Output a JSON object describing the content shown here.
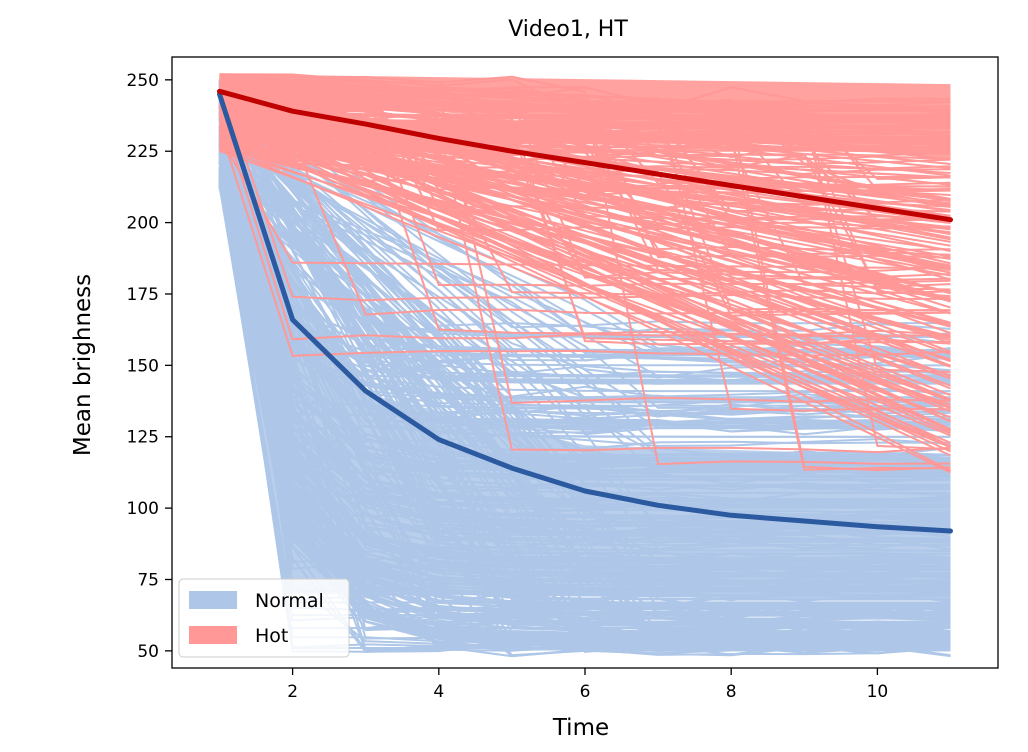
{
  "chart_data": {
    "type": "line",
    "title": "Video1, HT",
    "xlabel": "Time",
    "ylabel": "Mean brighness",
    "xlim": [
      0.35,
      11.65
    ],
    "ylim": [
      44,
      258
    ],
    "xticks": [
      2,
      4,
      6,
      8,
      10
    ],
    "yticks": [
      50,
      75,
      100,
      125,
      150,
      175,
      200,
      225,
      250
    ],
    "x": [
      1,
      2,
      3,
      4,
      5,
      6,
      7,
      8,
      9,
      10,
      11
    ],
    "grid": false,
    "legend_position": "lower-left",
    "legend": [
      {
        "label": "Normal",
        "color": "#aec7e8"
      },
      {
        "label": "Hot",
        "color": "#ff9896"
      }
    ],
    "series": [
      {
        "name": "Normal",
        "role": "mean",
        "color": "#2c5aa0",
        "values": [
          245,
          166,
          141,
          124,
          114,
          106,
          101,
          97.5,
          95.5,
          93.5,
          92
        ]
      },
      {
        "name": "Hot",
        "role": "mean",
        "color": "#c00000",
        "values": [
          246,
          239,
          234.5,
          229.5,
          225,
          221,
          217,
          213,
          209,
          205,
          201
        ]
      }
    ],
    "individual_traces": {
      "Normal": {
        "color": "#aec7e8",
        "start_range": [
          212,
          250
        ],
        "end_range": [
          50,
          165
        ]
      },
      "Hot": {
        "color": "#ff9896",
        "start_range": [
          225,
          252
        ],
        "end_range": [
          110,
          249
        ]
      }
    }
  }
}
